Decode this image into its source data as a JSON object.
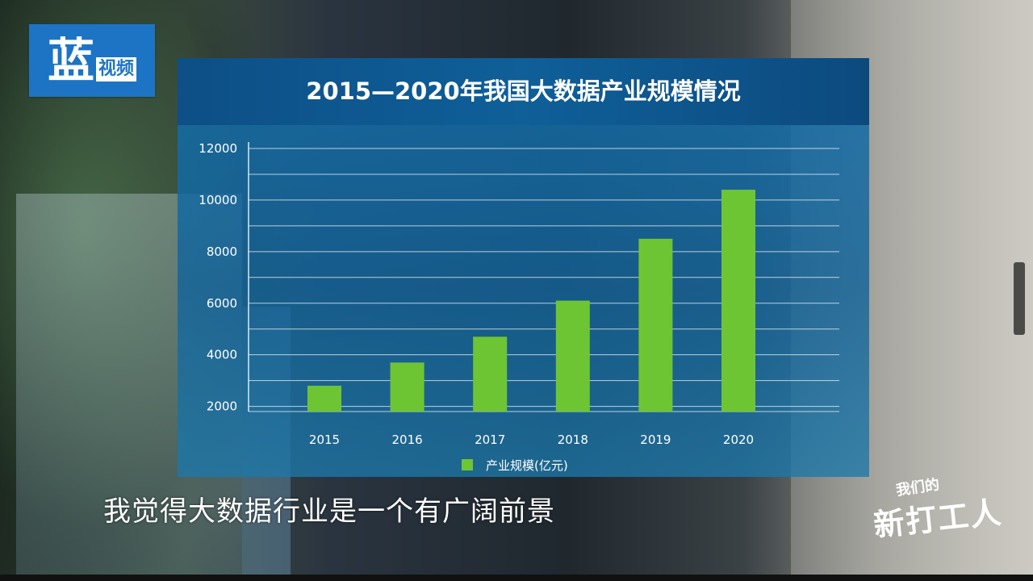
{
  "logo": {
    "main": "蓝",
    "sub": "视频"
  },
  "subtitle": "我觉得大数据行业是一个有广阔前景",
  "watermark": {
    "top": "我们的",
    "main": "新打工人"
  },
  "colors": {
    "bar": "#6ec533",
    "panel": "#136ea9",
    "header": "#0d4f86"
  },
  "chart_data": {
    "type": "bar",
    "title": "2015—2020年我国大数据产业规模情况",
    "categories": [
      "2015",
      "2016",
      "2017",
      "2018",
      "2019",
      "2020"
    ],
    "series": [
      {
        "name": "产业规模(亿元)",
        "values": [
          2800,
          3700,
          4700,
          6100,
          8500,
          10400
        ]
      }
    ],
    "y_ticks": [
      2000,
      4000,
      6000,
      8000,
      10000,
      12000
    ],
    "ylim": [
      1800,
      12000
    ],
    "legend_position": "bottom-center",
    "grid": true
  }
}
